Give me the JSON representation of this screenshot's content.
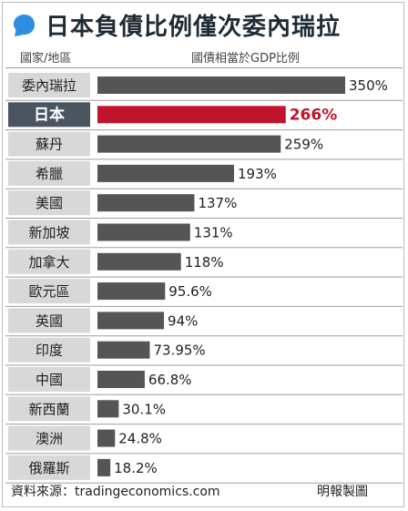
{
  "title": "日本負債比例僅次委內瑞拉",
  "column_headers": {
    "region": "國家/地區",
    "ratio": "國債相當於GDP比例"
  },
  "footer": {
    "source": "資料來源：tradingeconomics.com",
    "credit": "明報製圖"
  },
  "colors": {
    "bar": "#555555",
    "highlight_bar": "#c0142c",
    "highlight_label_bg": "#4a5560",
    "label_bg": "#d8d8d8",
    "accent_bubble": "#2f8ee0"
  },
  "chart_data": {
    "type": "bar",
    "orientation": "horizontal",
    "categories": [
      "委內瑞拉",
      "日本",
      "蘇丹",
      "希臘",
      "美國",
      "新加坡",
      "加拿大",
      "歐元區",
      "英國",
      "印度",
      "中國",
      "新西蘭",
      "澳洲",
      "俄羅斯"
    ],
    "values": [
      350,
      266,
      259,
      193,
      137,
      131,
      118,
      95.6,
      94,
      73.95,
      66.8,
      30.1,
      24.8,
      18.2
    ],
    "value_labels": [
      "350%",
      "266%",
      "259%",
      "193%",
      "137%",
      "131%",
      "118%",
      "95.6%",
      "94%",
      "73.95%",
      "66.8%",
      "30.1%",
      "24.8%",
      "18.2%"
    ],
    "highlight": "日本",
    "unit": "%"
  }
}
